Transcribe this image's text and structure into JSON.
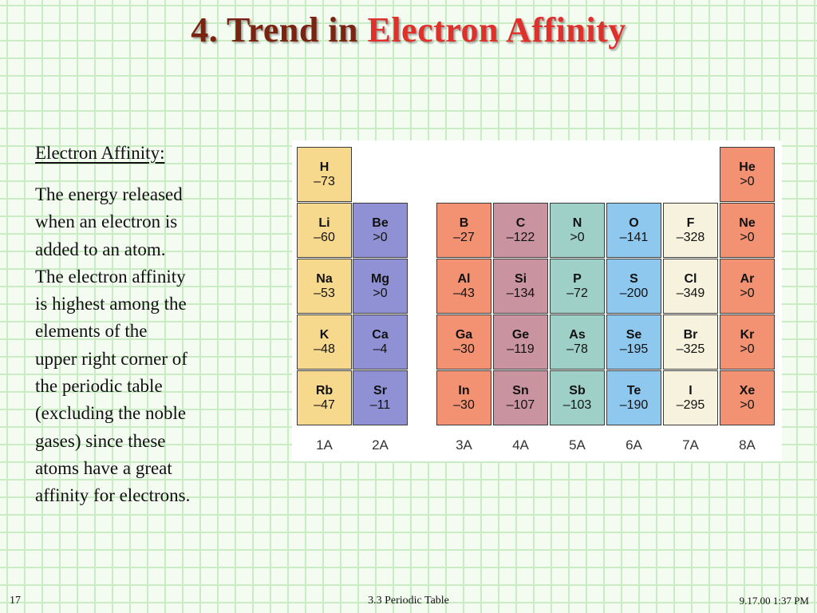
{
  "slide": {
    "title_prefix": "4. Trend in ",
    "title_highlight": "Electron Affinity",
    "subheading": "Electron Affinity:",
    "body_lines": [
      "The energy released",
      "when an electron is",
      "added to an atom.",
      "The electron affinity",
      "is highest among the",
      "elements of the",
      "upper right corner of",
      "the periodic table",
      "(excluding the noble",
      "gases) since these",
      "atoms have a great",
      "affinity for electrons."
    ]
  },
  "periodic_table": {
    "group_labels": [
      "1A",
      "2A",
      "3A",
      "4A",
      "5A",
      "6A",
      "7A",
      "8A"
    ],
    "group_colors": [
      "#f7d98e",
      "#8f91d4",
      "#f29272",
      "#c9939f",
      "#9ed0c8",
      "#8fc8ee",
      "#f6f2de",
      "#f29272"
    ],
    "elements": [
      {
        "symbol": "H",
        "value": "–73",
        "group": 0,
        "period": 0
      },
      {
        "symbol": "He",
        "value": ">0",
        "group": 7,
        "period": 0
      },
      {
        "symbol": "Li",
        "value": "–60",
        "group": 0,
        "period": 1
      },
      {
        "symbol": "Be",
        "value": ">0",
        "group": 1,
        "period": 1
      },
      {
        "symbol": "B",
        "value": "–27",
        "group": 2,
        "period": 1
      },
      {
        "symbol": "C",
        "value": "–122",
        "group": 3,
        "period": 1
      },
      {
        "symbol": "N",
        "value": ">0",
        "group": 4,
        "period": 1
      },
      {
        "symbol": "O",
        "value": "–141",
        "group": 5,
        "period": 1
      },
      {
        "symbol": "F",
        "value": "–328",
        "group": 6,
        "period": 1
      },
      {
        "symbol": "Ne",
        "value": ">0",
        "group": 7,
        "period": 1
      },
      {
        "symbol": "Na",
        "value": "–53",
        "group": 0,
        "period": 2
      },
      {
        "symbol": "Mg",
        "value": ">0",
        "group": 1,
        "period": 2
      },
      {
        "symbol": "Al",
        "value": "–43",
        "group": 2,
        "period": 2
      },
      {
        "symbol": "Si",
        "value": "–134",
        "group": 3,
        "period": 2
      },
      {
        "symbol": "P",
        "value": "–72",
        "group": 4,
        "period": 2
      },
      {
        "symbol": "S",
        "value": "–200",
        "group": 5,
        "period": 2
      },
      {
        "symbol": "Cl",
        "value": "–349",
        "group": 6,
        "period": 2
      },
      {
        "symbol": "Ar",
        "value": ">0",
        "group": 7,
        "period": 2
      },
      {
        "symbol": "K",
        "value": "–48",
        "group": 0,
        "period": 3
      },
      {
        "symbol": "Ca",
        "value": "–4",
        "group": 1,
        "period": 3
      },
      {
        "symbol": "Ga",
        "value": "–30",
        "group": 2,
        "period": 3
      },
      {
        "symbol": "Ge",
        "value": "–119",
        "group": 3,
        "period": 3
      },
      {
        "symbol": "As",
        "value": "–78",
        "group": 4,
        "period": 3
      },
      {
        "symbol": "Se",
        "value": "–195",
        "group": 5,
        "period": 3
      },
      {
        "symbol": "Br",
        "value": "–325",
        "group": 6,
        "period": 3
      },
      {
        "symbol": "Kr",
        "value": ">0",
        "group": 7,
        "period": 3
      },
      {
        "symbol": "Rb",
        "value": "–47",
        "group": 0,
        "period": 4
      },
      {
        "symbol": "Sr",
        "value": "–11",
        "group": 1,
        "period": 4
      },
      {
        "symbol": "In",
        "value": "–30",
        "group": 2,
        "period": 4
      },
      {
        "symbol": "Sn",
        "value": "–107",
        "group": 3,
        "period": 4
      },
      {
        "symbol": "Sb",
        "value": "–103",
        "group": 4,
        "period": 4
      },
      {
        "symbol": "Te",
        "value": "–190",
        "group": 5,
        "period": 4
      },
      {
        "symbol": "I",
        "value": "–295",
        "group": 6,
        "period": 4
      },
      {
        "symbol": "Xe",
        "value": ">0",
        "group": 7,
        "period": 4
      }
    ]
  },
  "footer": {
    "page_number": "17",
    "center_text": "3.3  Periodic Table",
    "datetime": "9.17.00 1:37 PM"
  }
}
